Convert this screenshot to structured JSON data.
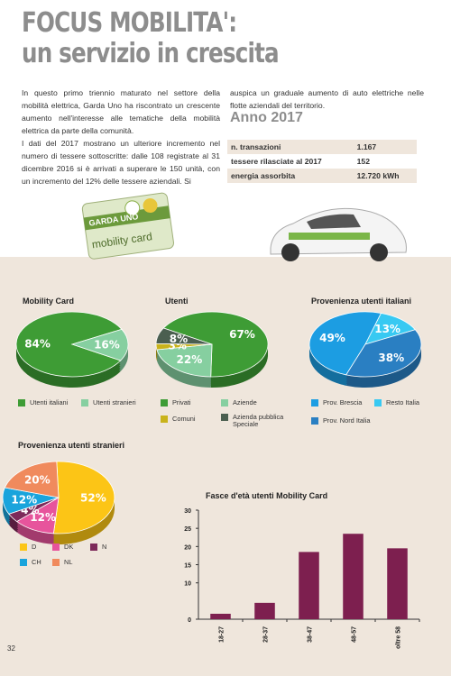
{
  "title_line1": "FOCUS MOBILITA':",
  "title_line2": "un servizio in crescita",
  "col1": [
    "In questo primo triennio maturato nel settore della mobilità elettrica, Garda Uno ha riscontrato un crescente aumento nell'interesse alle tematiche della mobilità elettrica da parte della comunità.",
    "I dati del 2017 mostrano un ulteriore incremento nel numero di tessere sottoscritte: dalle 108 registrate al 31 dicembre 2016 si è arrivati a superare le 150 unità, con un incremento del 12% delle tessere aziendali. Si"
  ],
  "col2": "auspica un graduale aumento di auto elettriche nelle flotte aziendali del territorio.",
  "year_title": "Anno 2017",
  "table": {
    "rows": [
      [
        "n. transazioni",
        "1.167"
      ],
      [
        "tessere rilasciate al 2017",
        "152"
      ],
      [
        "energia assorbita",
        "12.720 kWh"
      ]
    ]
  },
  "card_text": [
    "GARDA UNO",
    "mobility card"
  ],
  "page_number": "32",
  "chart_data": [
    {
      "type": "pie",
      "title": "Mobility Card",
      "categories": [
        "Utenti italiani",
        "Utenti stranieri"
      ],
      "values": [
        84,
        16
      ],
      "value_labels": [
        "84%",
        "16%"
      ],
      "colors": [
        "#3e9c35",
        "#86cfa0"
      ]
    },
    {
      "type": "pie",
      "title": "Utenti",
      "categories": [
        "Privati",
        "Aziende",
        "Comuni",
        "Azienda pubblica Speciale"
      ],
      "values": [
        67,
        22,
        3,
        8
      ],
      "value_labels": [
        "67%",
        "22%",
        "3%",
        "8%"
      ],
      "colors": [
        "#3e9c35",
        "#86cfa0",
        "#c9b31b",
        "#4b5f50"
      ]
    },
    {
      "type": "pie",
      "title": "Provenienza utenti italiani",
      "categories": [
        "Prov. Brescia",
        "Resto Italia",
        "Prov. Nord Italia"
      ],
      "values": [
        49,
        13,
        38
      ],
      "value_labels": [
        "49%",
        "13%",
        "38%"
      ],
      "colors": [
        "#1c9de2",
        "#38c9f2",
        "#2a7fc2"
      ]
    },
    {
      "type": "pie",
      "title": "Provenienza utenti stranieri",
      "categories": [
        "D",
        "DK",
        "N",
        "CH",
        "NL"
      ],
      "values": [
        52,
        12,
        4,
        12,
        20
      ],
      "value_labels": [
        "52%",
        "12%",
        "4%",
        "12%",
        "20%"
      ],
      "colors": [
        "#fcc516",
        "#e7549c",
        "#7d2a5a",
        "#1aa4dc",
        "#f08a5d"
      ]
    },
    {
      "type": "bar",
      "title": "Fasce d'età utenti Mobility Card",
      "categories": [
        "18-27",
        "28-37",
        "38-47",
        "48-57",
        "oltre 58"
      ],
      "values": [
        1.5,
        4.5,
        18.5,
        23.5,
        19.5
      ],
      "color": "#7d1f4f",
      "ylim": [
        0,
        30
      ],
      "yticks": [
        0,
        10,
        15,
        20,
        25,
        30
      ],
      "grid": false
    }
  ]
}
